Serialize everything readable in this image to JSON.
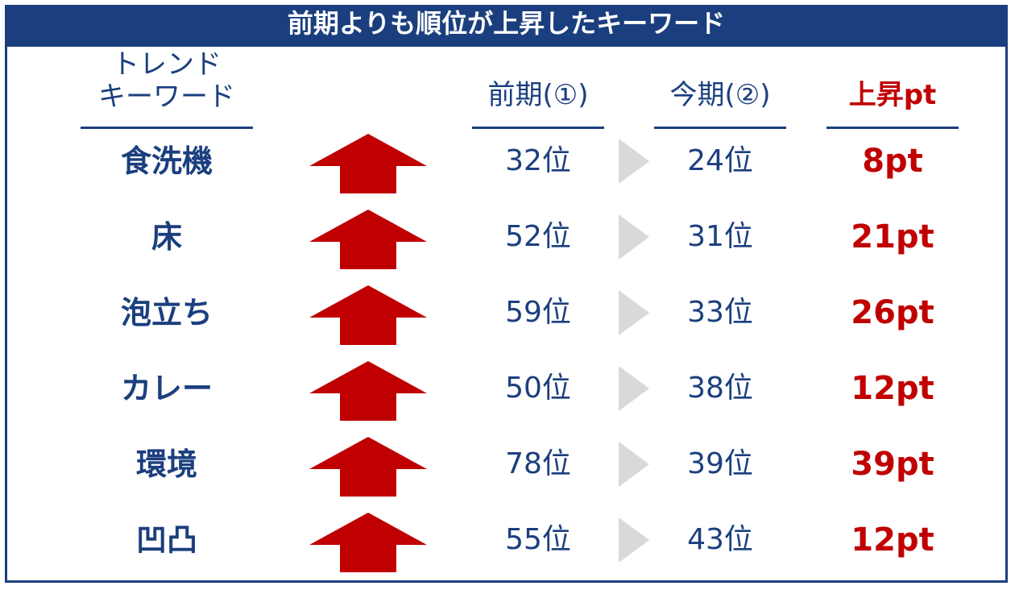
{
  "title": "前期よりも順位が上昇したキーワード",
  "headers": {
    "keyword_line1": "トレンド",
    "keyword_line2": "キーワード",
    "previous": "前期(①)",
    "current": "今期(②)",
    "rise": "上昇pt"
  },
  "colors": {
    "navy": "#1b3f7e",
    "red": "#c00000",
    "gray_triangle": "#d9d9d9"
  },
  "icons": {
    "arrow": "up-arrow-icon",
    "separator": "right-triangle-icon"
  },
  "rows": [
    {
      "keyword": "食洗機",
      "previous": "32位",
      "current": "24位",
      "rise": "8pt"
    },
    {
      "keyword": "床",
      "previous": "52位",
      "current": "31位",
      "rise": "21pt"
    },
    {
      "keyword": "泡立ち",
      "previous": "59位",
      "current": "33位",
      "rise": "26pt"
    },
    {
      "keyword": "カレー",
      "previous": "50位",
      "current": "38位",
      "rise": "12pt"
    },
    {
      "keyword": "環境",
      "previous": "78位",
      "current": "39位",
      "rise": "39pt"
    },
    {
      "keyword": "凹凸",
      "previous": "55位",
      "current": "43位",
      "rise": "12pt"
    }
  ]
}
